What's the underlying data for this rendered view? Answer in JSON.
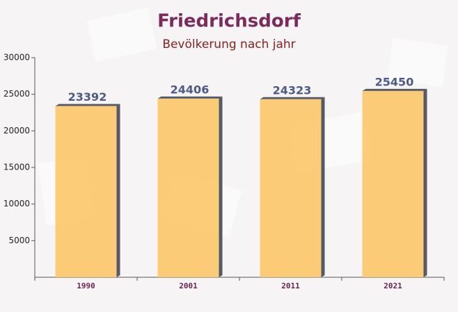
{
  "chart_data": {
    "type": "bar",
    "title": "Friedrichsdorf",
    "subtitle": "Bevölkerung nach jahr",
    "categories": [
      "1990",
      "2001",
      "2011",
      "2021"
    ],
    "values": [
      23392,
      24406,
      24323,
      25450
    ],
    "color": "#fdc66a",
    "ylim": [
      0,
      30000
    ],
    "yticks": [
      5000,
      10000,
      15000,
      20000,
      25000,
      30000
    ]
  }
}
